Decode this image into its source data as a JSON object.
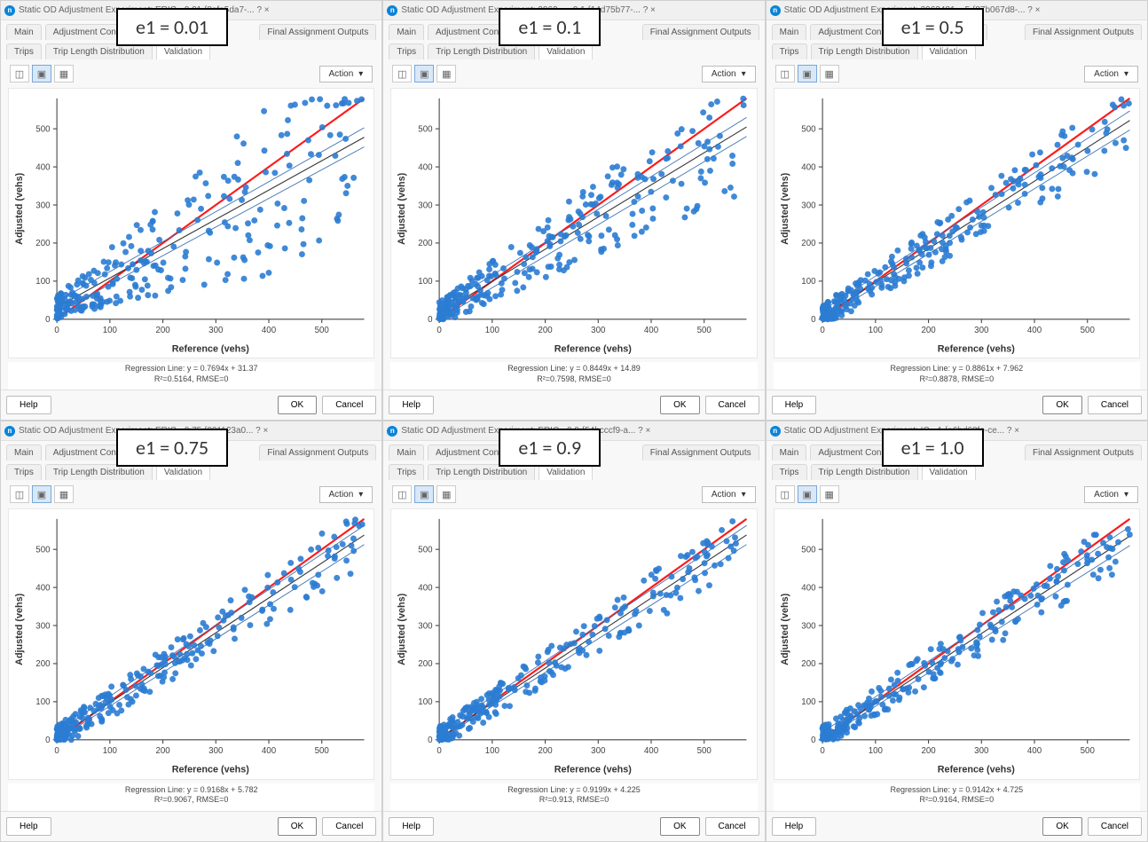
{
  "common": {
    "window_title_prefix": "Static OD Adjustment Experiment:",
    "tabs_row1": [
      "Main",
      "Adjustment Constraints",
      "Outputs to",
      "Final Assignment Outputs"
    ],
    "tabs_row2": [
      "Trips",
      "Trip Length Distribution",
      "Validation"
    ],
    "action_label": "Action",
    "help_label": "Help",
    "ok_label": "OK",
    "cancel_label": "Cancel",
    "xlabel": "Reference (vehs)",
    "ylabel": "Adjusted (vehs)",
    "xlim": [
      0,
      580
    ],
    "ylim": [
      0,
      580
    ],
    "ticks": [
      0,
      100,
      200,
      300,
      400,
      500
    ],
    "point_color": "#2b7cd3",
    "ref_line_color": "#ff1a1a",
    "line_color_dark": "#333333",
    "line_color_blue": "#3a6fb0",
    "bg_color": "#ffffff",
    "point_radius": 3.2
  },
  "panels": [
    {
      "id": "p1",
      "overlay": "e1 = 0.01",
      "title_suffix": "ERIC - 0.01   {8afe5da7-...     ?     ×",
      "tabs_row1_short": "Ou",
      "regression": "Regression Line: y = 0.7694x + 31.37",
      "r2": "R²=0.5164, RMSE=0",
      "slope": 0.7694,
      "intercept": 31.37,
      "noise": 0.48
    },
    {
      "id": "p2",
      "overlay": "e1 = 0.1",
      "title_suffix": "3962... - 0.1   {14d75b77-...     ?     ×",
      "tabs_row1_short": "Outputs",
      "regression": "Regression Line: y = 0.8449x + 14.89",
      "r2": "R²=0.7598, RMSE=0",
      "slope": 0.8449,
      "intercept": 14.89,
      "noise": 0.24
    },
    {
      "id": "p3",
      "overlay": "e1 = 0.5",
      "title_suffix": "3962481... 5   {87b067d8-...     ?     ×",
      "tabs_row1_short": "Outputs to G",
      "regression": "Regression Line: y = 0.8861x + 7.962",
      "r2": "R²=0.8878, RMSE=0",
      "slope": 0.8861,
      "intercept": 7.962,
      "noise": 0.12
    },
    {
      "id": "p4",
      "overlay": "e1 = 0.75",
      "title_suffix": "ERIC - 0.75   {021123a0...     ?     ×",
      "tabs_row1_short": "O",
      "regression": "Regression Line: y = 0.9168x + 5.782",
      "r2": "R²=0.9067, RMSE=0",
      "slope": 0.9168,
      "intercept": 5.782,
      "noise": 0.095
    },
    {
      "id": "p5",
      "overlay": "e1 = 0.9",
      "title_suffix": "ERIC - 0.9   {54bcccf9-a...     ?     ×",
      "tabs_row1_short": "Outputs to",
      "regression": "Regression Line: y = 0.9199x + 4.225",
      "r2": "R²=0.913, RMSE=0",
      "slope": 0.9199,
      "intercept": 4.225,
      "noise": 0.088
    },
    {
      "id": "p6",
      "overlay": "e1 = 1.0",
      "title_suffix": "IC - 1   {a6bd68fe-ce...     ?     ×",
      "tabs_row1_short": "Out",
      "regression": "Regression Line: y = 0.9142x + 4.725",
      "r2": "R²=0.9164, RMSE=0",
      "slope": 0.9142,
      "intercept": 4.725,
      "noise": 0.085
    }
  ]
}
